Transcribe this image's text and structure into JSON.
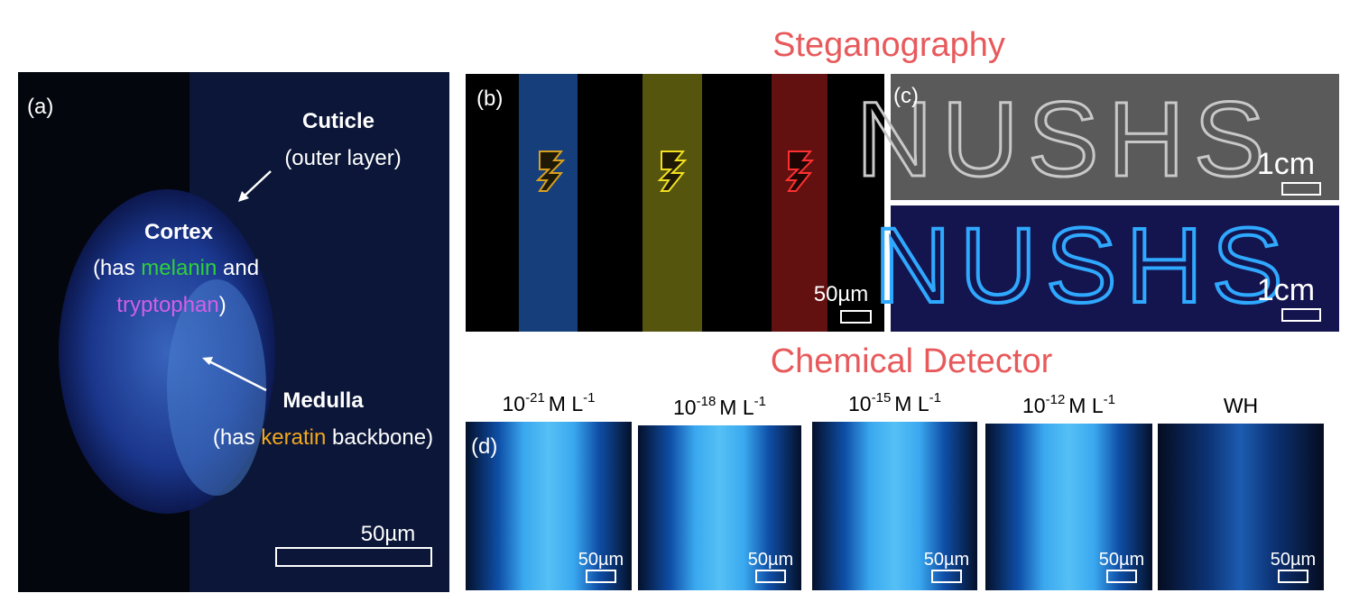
{
  "titles": {
    "steganography": "Steganography",
    "chemical_detector": "Chemical Detector"
  },
  "panel_a": {
    "label": "(a)",
    "cuticle": {
      "name": "Cuticle",
      "note": "(outer layer)"
    },
    "cortex": {
      "name": "Cortex",
      "note_line1": [
        "(has ",
        "melanin",
        " and"
      ],
      "note_line2": [
        "tryptophan",
        ")"
      ]
    },
    "medulla": {
      "name": "Medulla",
      "note": [
        "(has ",
        "keratin",
        " backbone)"
      ]
    },
    "scale": "50µm"
  },
  "panel_b": {
    "label": "(b)",
    "scale": "50µm"
  },
  "panel_c": {
    "label": "(c)",
    "writing": "NUSHS",
    "top_scale": "1cm",
    "bottom_scale": "1cm"
  },
  "panel_d": {
    "label": "(d)",
    "images": [
      {
        "concentration": {
          "base": "10",
          "exponent": "-21",
          "unit": "M L",
          "unit_exponent": "-1"
        },
        "scale": "50µm"
      },
      {
        "concentration": {
          "base": "10",
          "exponent": "-18",
          "unit": "M L",
          "unit_exponent": "-1"
        },
        "scale": "50µm"
      },
      {
        "concentration": {
          "base": "10",
          "exponent": "-15",
          "unit": "M L",
          "unit_exponent": "-1"
        },
        "scale": "50µm"
      },
      {
        "concentration": {
          "base": "10",
          "exponent": "-12",
          "unit": "M L",
          "unit_exponent": "-1"
        },
        "scale": "50µm"
      },
      {
        "name": "WH",
        "scale": "50µm"
      }
    ]
  }
}
